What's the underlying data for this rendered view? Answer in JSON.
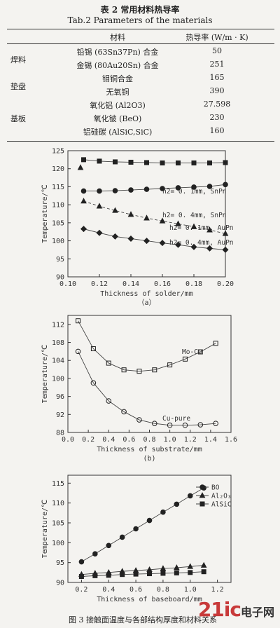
{
  "table": {
    "title": "表 2  常用材料热导率",
    "subtitle": "Tab.2   Parameters of the materials",
    "headers": [
      "材料",
      "热导率 (W/m · K)"
    ],
    "rows": [
      {
        "category": "焊料",
        "material": "铅锡 (63Sn37Pn) 合金",
        "value": "50"
      },
      {
        "category": "",
        "material": "金锡 (80Au20Sn) 合金",
        "value": "251"
      },
      {
        "category": "垫盘",
        "material": "钼铜合金",
        "value": "165"
      },
      {
        "category": "",
        "material": "无氧铜",
        "value": "390"
      },
      {
        "category": "",
        "material": "氧化铝 (Al2O3)",
        "value": "27.598"
      },
      {
        "category": "基板",
        "material": "氧化铍 (BeO)",
        "value": "230"
      },
      {
        "category": "",
        "material": "铝硅碳 (AlSiC,SiC)",
        "value": "160"
      }
    ]
  },
  "chart_data": [
    {
      "type": "line",
      "caption": "（a）",
      "xlabel": "Thickness of solder/mm",
      "ylabel": "Temperature/℃",
      "xlim": [
        0.1,
        0.2
      ],
      "ylim": [
        90,
        125
      ],
      "xticks": [
        "0.10",
        "0.12",
        "0.14",
        "0.16",
        "0.18",
        "0.20"
      ],
      "yticks": [
        "90",
        "95",
        "100",
        "105",
        "110",
        "115",
        "120",
        "125"
      ],
      "series": [
        {
          "name": "h2= 0. 1mm, SnPn",
          "marker": "square",
          "x": [
            0.11,
            0.12,
            0.13,
            0.14,
            0.15,
            0.16,
            0.17,
            0.18,
            0.19,
            0.2
          ],
          "y": [
            122.5,
            122.1,
            121.9,
            121.8,
            121.7,
            121.6,
            121.6,
            121.6,
            121.6,
            121.7
          ]
        },
        {
          "name": "h2= 0. 4mm, SnPn",
          "marker": "circle",
          "x": [
            0.11,
            0.12,
            0.13,
            0.14,
            0.15,
            0.16,
            0.17,
            0.18,
            0.19,
            0.2
          ],
          "y": [
            113.8,
            113.8,
            113.9,
            114.1,
            114.3,
            114.5,
            114.7,
            114.9,
            115.1,
            115.6
          ]
        },
        {
          "name": "h2= 0. 1mm, AuPn",
          "marker": "triangle",
          "x": [
            0.11,
            0.12,
            0.13,
            0.14,
            0.15,
            0.16,
            0.17,
            0.18,
            0.19,
            0.2
          ],
          "y": [
            111.0,
            109.6,
            108.4,
            107.3,
            106.3,
            105.5,
            104.7,
            103.9,
            103.0,
            102.0
          ]
        },
        {
          "name": "h2= 0. 4mm, AuPn",
          "marker": "diamond",
          "x": [
            0.11,
            0.12,
            0.13,
            0.14,
            0.15,
            0.16,
            0.17,
            0.18,
            0.19,
            0.2
          ],
          "y": [
            103.3,
            102.2,
            101.2,
            100.6,
            100.0,
            99.4,
            98.9,
            98.3,
            97.9,
            97.5
          ]
        }
      ],
      "extra_points": [
        {
          "x": 0.108,
          "y": 120.3,
          "marker": "triangle"
        }
      ]
    },
    {
      "type": "line",
      "caption": "(b)",
      "xlabel": "Thickness of substrate/mm",
      "ylabel": "Temperature/℃",
      "xlim": [
        0.0,
        1.6
      ],
      "ylim": [
        88,
        114
      ],
      "xticks": [
        "0.0",
        "0.2",
        "0.4",
        "0.6",
        "0.8",
        "1.0",
        "1.2",
        "1.4",
        "1.6"
      ],
      "yticks": [
        "88",
        "92",
        "96",
        "100",
        "104",
        "108",
        "112"
      ],
      "series": [
        {
          "name": "Mo-Cu",
          "marker": "square",
          "x": [
            0.1,
            0.25,
            0.4,
            0.55,
            0.7,
            0.85,
            1.0,
            1.15,
            1.3,
            1.45
          ],
          "y": [
            112.8,
            106.6,
            103.4,
            101.9,
            101.6,
            101.9,
            103.0,
            104.3,
            105.9,
            107.8
          ]
        },
        {
          "name": "Cu-pure",
          "marker": "circle",
          "x": [
            0.1,
            0.25,
            0.4,
            0.55,
            0.7,
            0.85,
            1.0,
            1.15,
            1.3,
            1.45
          ],
          "y": [
            106.0,
            99.0,
            95.0,
            92.6,
            90.8,
            90.0,
            89.6,
            89.6,
            89.7,
            90.0
          ]
        }
      ]
    },
    {
      "type": "line",
      "caption": "",
      "xlabel": "Thickness of baseboard/mm",
      "ylabel": "Temperature/℃",
      "xlim": [
        0.1,
        1.3
      ],
      "ylim": [
        90,
        117
      ],
      "xticks": [
        "0.2",
        "0.4",
        "0.6",
        "0.8",
        "1.0",
        "1.2"
      ],
      "yticks": [
        "90",
        "95",
        "100",
        "105",
        "110",
        "115"
      ],
      "series": [
        {
          "name": "BO",
          "marker": "circle",
          "x": [
            0.2,
            0.3,
            0.4,
            0.5,
            0.6,
            0.7,
            0.8,
            0.9,
            1.0,
            1.1
          ],
          "y": [
            95.2,
            97.2,
            99.3,
            101.4,
            103.5,
            105.6,
            107.7,
            109.7,
            111.8,
            113.8
          ]
        },
        {
          "name": "Al₂O₃",
          "marker": "triangle",
          "x": [
            0.2,
            0.3,
            0.4,
            0.5,
            0.6,
            0.7,
            0.8,
            0.9,
            1.0,
            1.1
          ],
          "y": [
            92.0,
            92.3,
            92.5,
            92.8,
            93.0,
            93.2,
            93.5,
            93.7,
            94.0,
            94.3
          ]
        },
        {
          "name": "AlSiC",
          "marker": "square",
          "x": [
            0.2,
            0.3,
            0.4,
            0.5,
            0.6,
            0.7,
            0.8,
            0.9,
            1.0,
            1.1
          ],
          "y": [
            91.5,
            91.7,
            91.8,
            92.0,
            92.1,
            92.2,
            92.3,
            92.4,
            92.5,
            92.7
          ]
        }
      ]
    }
  ],
  "figure_caption": "图 3   接触面温度与各部结构厚度和材料关系",
  "watermark": {
    "a": "21ic",
    "b": "电子网"
  }
}
